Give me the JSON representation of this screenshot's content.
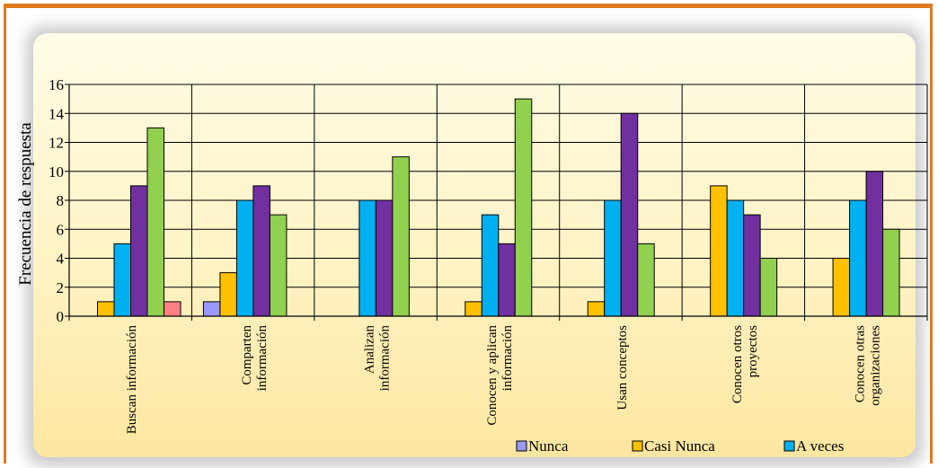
{
  "chart_data": {
    "type": "bar",
    "title": "",
    "xlabel": "",
    "ylabel": "Frecuencia de respuesta",
    "ylim": [
      0,
      16
    ],
    "yticks": [
      0,
      2,
      4,
      6,
      8,
      10,
      12,
      14,
      16
    ],
    "grid": true,
    "legend_position": "bottom-right",
    "categories": [
      [
        "Buscan información"
      ],
      [
        "Comparten",
        "información"
      ],
      [
        "Analizan",
        "información"
      ],
      [
        "Conocen y aplican",
        "información"
      ],
      [
        "Usan conceptos"
      ],
      [
        "Conocen otros",
        "proyectos"
      ],
      [
        "Conocen otras",
        "organizaciones"
      ]
    ],
    "series": [
      {
        "name": "Nunca",
        "color": "#9999ff",
        "values": [
          0,
          1,
          0,
          0,
          0,
          0,
          0
        ]
      },
      {
        "name": "Casi Nunca",
        "color": "#ffc000",
        "values": [
          1,
          3,
          0,
          1,
          1,
          9,
          4
        ]
      },
      {
        "name": "A veces",
        "color": "#00b0f0",
        "values": [
          5,
          8,
          8,
          7,
          8,
          8,
          8
        ]
      },
      {
        "color": "#7030a0",
        "values": [
          9,
          9,
          8,
          5,
          14,
          7,
          10
        ]
      },
      {
        "color": "#92d050",
        "values": [
          13,
          7,
          11,
          15,
          5,
          4,
          6
        ]
      },
      {
        "color": "#ff8080",
        "values": [
          1,
          0,
          0,
          0,
          0,
          0,
          0
        ]
      }
    ]
  }
}
